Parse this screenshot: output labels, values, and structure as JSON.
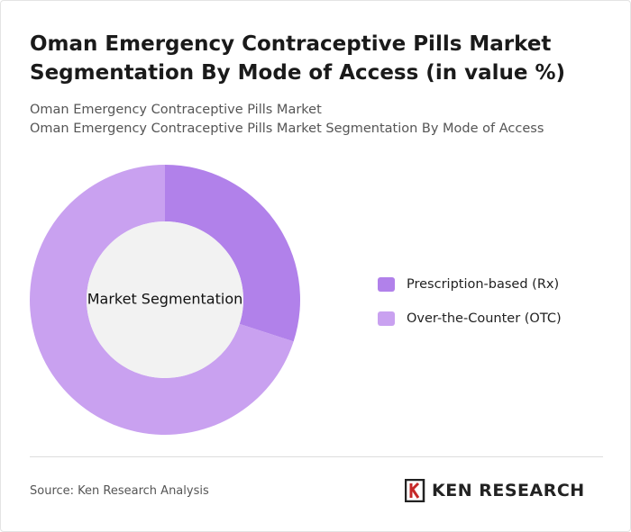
{
  "chart_data": {
    "type": "donut",
    "title": "Oman Emergency Contraceptive Pills Market Segmentation By Mode of Access (in value %)",
    "subtitle": [
      "Oman Emergency Contraceptive Pills Market",
      "Oman Emergency Contraceptive Pills Market Segmentation By Mode of Access"
    ],
    "center_label": "Market Segmentation",
    "categories": [
      "Prescription-based (Rx)",
      "Over-the-Counter (OTC)"
    ],
    "values": [
      30,
      70
    ],
    "colors": [
      "#b181ea",
      "#c9a1f0"
    ],
    "source": "Source: Ken Research Analysis",
    "logo": "KEN RESEARCH"
  }
}
